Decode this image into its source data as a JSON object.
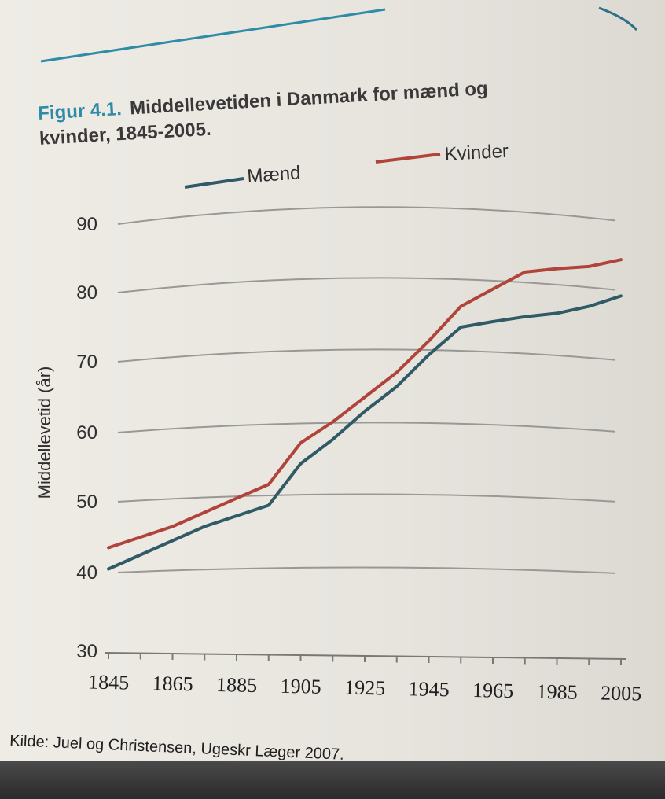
{
  "figure": {
    "label": "Figur 4.1.",
    "title_line1": "Middellevetiden i Danmark for mænd og",
    "title_line2": "kvinder, 1845-2005.",
    "source": "Kilde: Juel og Christensen, Ugeskr Læger 2007."
  },
  "colors": {
    "accent": "#2f8ca6",
    "men": "#2f5a66",
    "women": "#b0443a",
    "grid": "#9a9894"
  },
  "chart_data": {
    "type": "line",
    "x": [
      1845,
      1855,
      1865,
      1875,
      1885,
      1895,
      1905,
      1915,
      1925,
      1935,
      1945,
      1955,
      1965,
      1975,
      1985,
      1995,
      2005
    ],
    "series": [
      {
        "name": "Mænd",
        "values": [
          40.5,
          42.5,
          44.5,
          46.5,
          48,
          49.5,
          55.5,
          59,
          63,
          66.5,
          71,
          75,
          75.8,
          76.5,
          77,
          78,
          79.5
        ]
      },
      {
        "name": "Kvinder",
        "values": [
          43.5,
          45,
          46.5,
          48.5,
          50.5,
          52.5,
          58.5,
          61.5,
          65,
          68.5,
          73,
          78,
          80.5,
          83,
          83.5,
          83.8,
          84.8
        ]
      }
    ],
    "ylabel": "Middellevetid (år)",
    "xlabel": "",
    "ylim": [
      30,
      90
    ],
    "xlim": [
      1845,
      2005
    ],
    "yticks": [
      30,
      40,
      50,
      60,
      70,
      80,
      90
    ],
    "xticks": [
      1845,
      1865,
      1885,
      1905,
      1925,
      1945,
      1965,
      1985,
      2005
    ],
    "legend": {
      "position": "top",
      "entries": [
        "Mænd",
        "Kvinder"
      ]
    },
    "grid": true
  }
}
